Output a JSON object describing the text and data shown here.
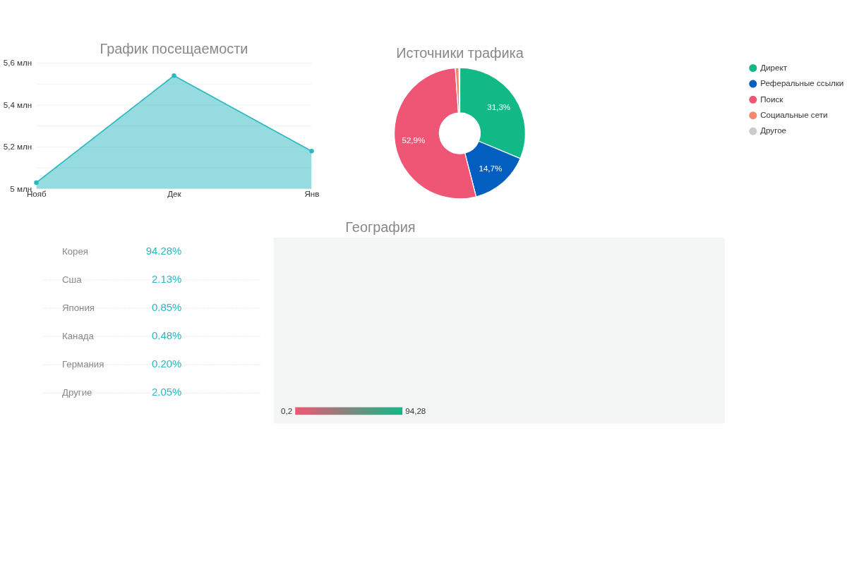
{
  "chart_data": [
    {
      "type": "area",
      "title": "График посещаемости",
      "categories": [
        "Нояб",
        "Дек",
        "Янв"
      ],
      "series": [
        {
          "color": "#2bb7c0",
          "values": [
            5.03,
            5.54,
            5.18
          ]
        }
      ],
      "ylim": [
        5,
        5.6
      ],
      "yticks": [
        {
          "value": 5,
          "label": "5 млн"
        },
        {
          "value": 5.1,
          "label": null
        },
        {
          "value": 5.2,
          "label": "5,2 млн"
        },
        {
          "value": 5.3,
          "label": null
        },
        {
          "value": 5.4,
          "label": "5,4 млн"
        },
        {
          "value": 5.5,
          "label": null
        },
        {
          "value": 5.6,
          "label": "5,6 млн"
        }
      ],
      "grid": "y",
      "marker": "circle",
      "line_style": "solid"
    },
    {
      "type": "donut",
      "title": "Источники трафика",
      "categories": [
        "Директ",
        "Реферальные ссылки",
        "Поиск",
        "Социальные сети",
        "Другое"
      ],
      "values": [
        31.3,
        14.7,
        52.9,
        0.9,
        0.2
      ],
      "colors": [
        "#12b886",
        "#035fbf",
        "#ef5675",
        "#f5876a",
        "#cccccc"
      ],
      "value_labels": [
        "31,3%",
        "14,7%",
        "52,9%",
        null,
        null
      ],
      "legend": "right"
    },
    {
      "type": "other",
      "title": "География",
      "categories": [
        "Корея",
        "Сша",
        "Япония",
        "Канада",
        "Германия",
        "Другие"
      ],
      "values": [
        94.28,
        2.13,
        0.85,
        0.48,
        0.2,
        2.05
      ],
      "value_labels": [
        "94.28%",
        "2.13%",
        "0.85%",
        "0.48%",
        "0.20%",
        "2.05%"
      ],
      "annotations": [
        "0,2",
        "94,28"
      ]
    }
  ]
}
